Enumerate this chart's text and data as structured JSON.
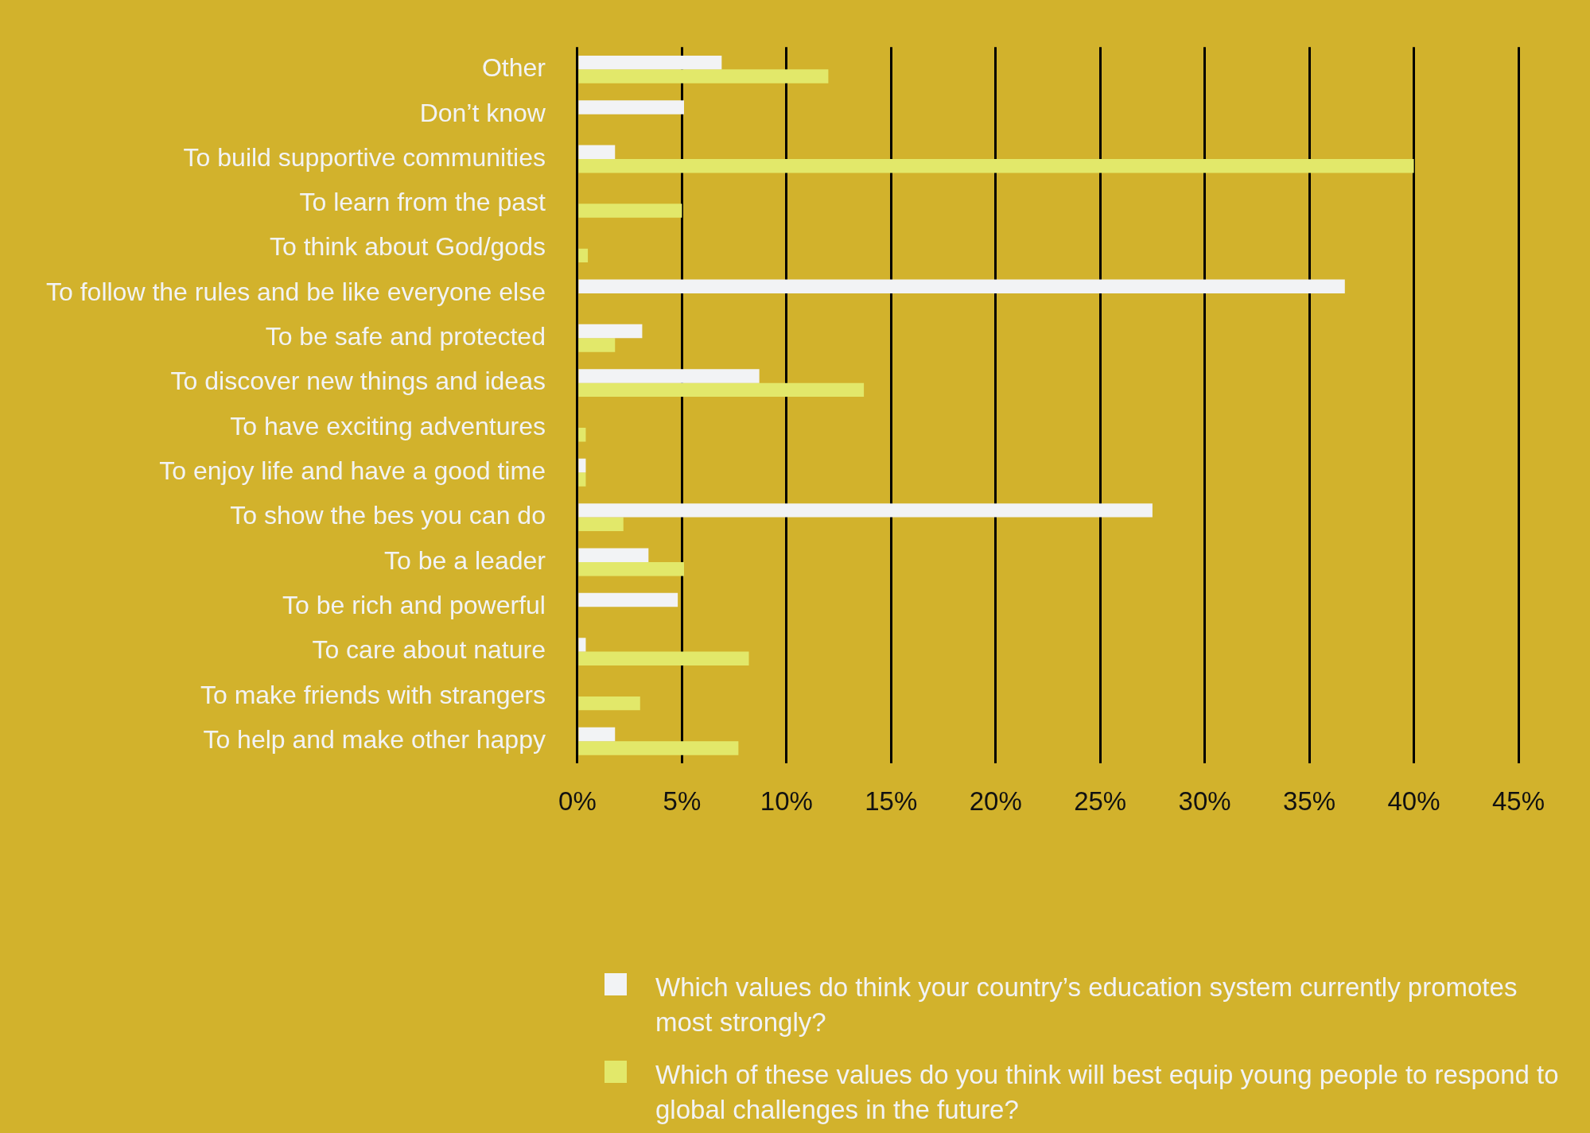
{
  "chart_data": {
    "type": "bar",
    "orientation": "horizontal",
    "categories": [
      "Other",
      "Don’t know",
      "To build supportive communities",
      "To learn from the past",
      "To think about God/gods",
      "To follow the rules and be like everyone else",
      "To be safe and protected",
      "To discover new things and ideas",
      "To have exciting adventures",
      "To enjoy life and have a good time",
      "To show the bes you can do",
      "To be a leader",
      "To be rich and powerful",
      "To care about nature",
      "To make friends with strangers",
      "To help and make other happy"
    ],
    "series": [
      {
        "name": "Which values do think your country’s education system currently promotes most strongly?",
        "color": "#f2f3f5",
        "values": [
          6.9,
          5.1,
          1.8,
          null,
          null,
          36.7,
          3.1,
          8.7,
          null,
          0.4,
          27.5,
          3.4,
          4.8,
          0.4,
          null,
          1.8
        ]
      },
      {
        "name": "Which of these values do you think will best equip young people to respond to global challenges in the future?",
        "color": "#e2e86a",
        "values": [
          12.0,
          null,
          40.0,
          5.0,
          0.5,
          null,
          1.8,
          13.7,
          0.4,
          0.4,
          2.2,
          5.1,
          null,
          8.2,
          3.0,
          7.7
        ]
      }
    ],
    "xlim": [
      0,
      45
    ],
    "xticks": [
      {
        "value": 0,
        "label": "0%"
      },
      {
        "value": 5,
        "label": "5%"
      },
      {
        "value": 10,
        "label": "10%"
      },
      {
        "value": 15,
        "label": "15%"
      },
      {
        "value": 20,
        "label": "20%"
      },
      {
        "value": 25,
        "label": "25%"
      },
      {
        "value": 30,
        "label": "30%"
      },
      {
        "value": 35,
        "label": "35%"
      },
      {
        "value": 40,
        "label": "40%"
      },
      {
        "value": 45,
        "label": "45%"
      }
    ],
    "grid": "x",
    "legend": "bottom"
  }
}
